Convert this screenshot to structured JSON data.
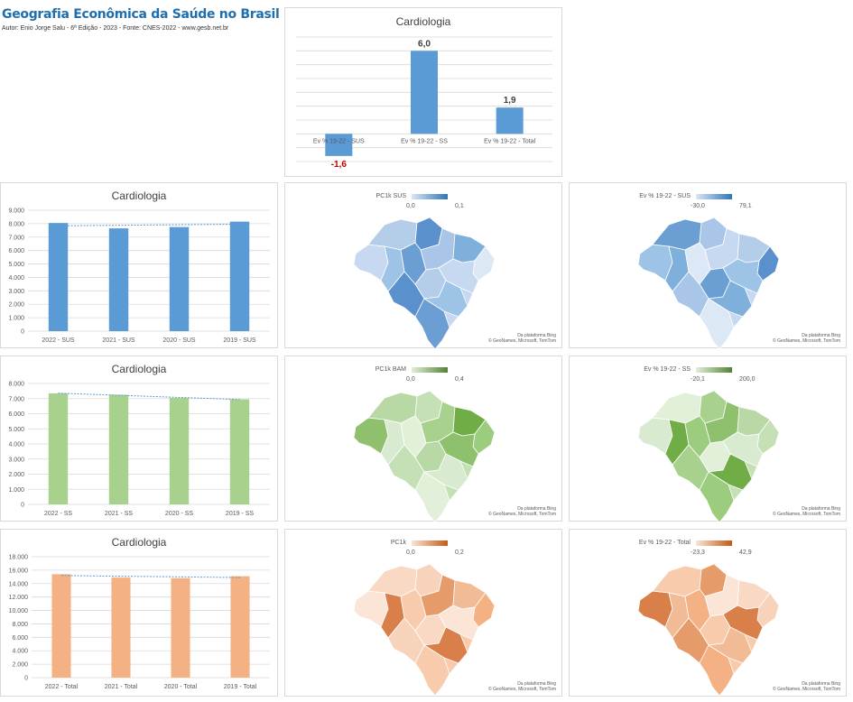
{
  "header": {
    "title": "Geografia Econômica da Saúde no Brasil",
    "subtitle": "Autor: Enio Jorge Salu - 6ª Edição - 2023 - Fonte: CNES-2022 - www.gesb.net.br"
  },
  "colors": {
    "blue": "#5b9bd5",
    "green": "#a9d18e",
    "orange": "#f4b183",
    "negative_label": "#c00000"
  },
  "chart_data": [
    {
      "id": "top",
      "type": "bar",
      "title": "Cardiologia",
      "categories": [
        "Ev % 19-22 - SUS",
        "Ev % 19-22 - SS",
        "Ev % 19-22 - Total"
      ],
      "values": [
        -1.6,
        6.0,
        1.9
      ],
      "data_labels": [
        "-1,6",
        "6,0",
        "1,9"
      ],
      "ylim": [
        -2,
        7
      ],
      "grid": true
    },
    {
      "id": "sus",
      "type": "bar",
      "title": "Cardiologia",
      "categories": [
        "2022 - SUS",
        "2021 - SUS",
        "2020 - SUS",
        "2019 - SUS"
      ],
      "values": [
        8050,
        7650,
        7750,
        8150
      ],
      "ylim": [
        0,
        9000
      ],
      "yticks": [
        "0",
        "1.000",
        "2.000",
        "3.000",
        "4.000",
        "5.000",
        "6.000",
        "7.000",
        "8.000",
        "9.000"
      ],
      "trendline": true,
      "grid": true
    },
    {
      "id": "ss",
      "type": "bar",
      "title": "Cardiologia",
      "categories": [
        "2022 - SS",
        "2021 - SS",
        "2020 - SS",
        "2019 - SS"
      ],
      "values": [
        7350,
        7250,
        7050,
        6950
      ],
      "ylim": [
        0,
        8000
      ],
      "yticks": [
        "0",
        "1.000",
        "2.000",
        "3.000",
        "4.000",
        "5.000",
        "6.000",
        "7.000",
        "8.000"
      ],
      "trendline": true,
      "grid": true
    },
    {
      "id": "total",
      "type": "bar",
      "title": "Cardiologia",
      "categories": [
        "2022 - Total",
        "2021 - Total",
        "2020 - Total",
        "2019 - Total"
      ],
      "values": [
        15400,
        14900,
        14800,
        15100
      ],
      "ylim": [
        0,
        18000
      ],
      "yticks": [
        "0",
        "2.000",
        "4.000",
        "6.000",
        "8.000",
        "10.000",
        "12.000",
        "14.000",
        "16.000",
        "18.000"
      ],
      "trendline": true,
      "grid": true
    }
  ],
  "maps": [
    {
      "id": "m1",
      "legend": "PC1k SUS",
      "min": "0,0",
      "max": "0,1",
      "scheme": "blue"
    },
    {
      "id": "m2",
      "legend": "Ev % 19-22 - SUS",
      "min": "-30,0",
      "max": "79,1",
      "scheme": "blue"
    },
    {
      "id": "m3",
      "legend": "PC1k BAM",
      "min": "0,0",
      "max": "0,4",
      "scheme": "green"
    },
    {
      "id": "m4",
      "legend": "Ev % 19-22 - SS",
      "min": "-20,1",
      "max": "200,0",
      "scheme": "green"
    },
    {
      "id": "m5",
      "legend": "PC1k",
      "min": "0,0",
      "max": "0,2",
      "scheme": "orange"
    },
    {
      "id": "m6",
      "legend": "Ev % 19-22 - Total",
      "min": "-23,3",
      "max": "42,9",
      "scheme": "orange"
    }
  ],
  "map_credit": {
    "line1": "Da plataforma Bing",
    "line2": "© GeoNames, Microsoft, TomTom"
  }
}
